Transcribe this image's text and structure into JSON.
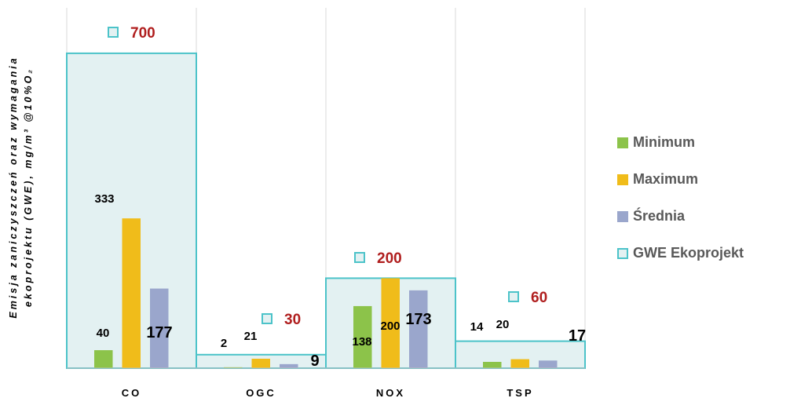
{
  "chart_data": {
    "type": "bar",
    "categories": [
      "CO",
      "OGC",
      "NOX",
      "TSP"
    ],
    "ylabel_line1": "Emisja zaniczyszczeń oraz wymagania",
    "ylabel_line2": "ekoprojektu (GWE), mg/m³ @10%O₂",
    "ylim": [
      0,
      800
    ],
    "series": [
      {
        "name": "Minimum",
        "color": "#8cc34a",
        "values": [
          40,
          2,
          138,
          14
        ],
        "labels": [
          "40",
          "2",
          "138",
          "14"
        ]
      },
      {
        "name": "Maximum",
        "color": "#f0bc1a",
        "values": [
          333,
          21,
          200,
          20
        ],
        "labels": [
          "333",
          "21",
          "200",
          "20"
        ]
      },
      {
        "name": "Średnia",
        "color": "#9aa6cc",
        "values": [
          177,
          9,
          173,
          17
        ],
        "labels": [
          "177",
          "9",
          "173",
          "17"
        ]
      },
      {
        "name": "GWE Ekoprojekt",
        "color": "#e3f1f2",
        "border": "#4cc3c9",
        "values": [
          700,
          30,
          200,
          60
        ],
        "labels": [
          "700",
          "30",
          "200",
          "60"
        ]
      }
    ],
    "legend_position": "right",
    "grid": "vertical category separators"
  },
  "legend": {
    "items": [
      {
        "label": "Minimum",
        "color": "#8cc34a"
      },
      {
        "label": "Maximum",
        "color": "#f0bc1a"
      },
      {
        "label": "Średnia",
        "color": "#9aa6cc"
      },
      {
        "label": "GWE Ekoprojekt",
        "color": "#e3f1f2",
        "border": "#4cc3c9"
      }
    ]
  }
}
